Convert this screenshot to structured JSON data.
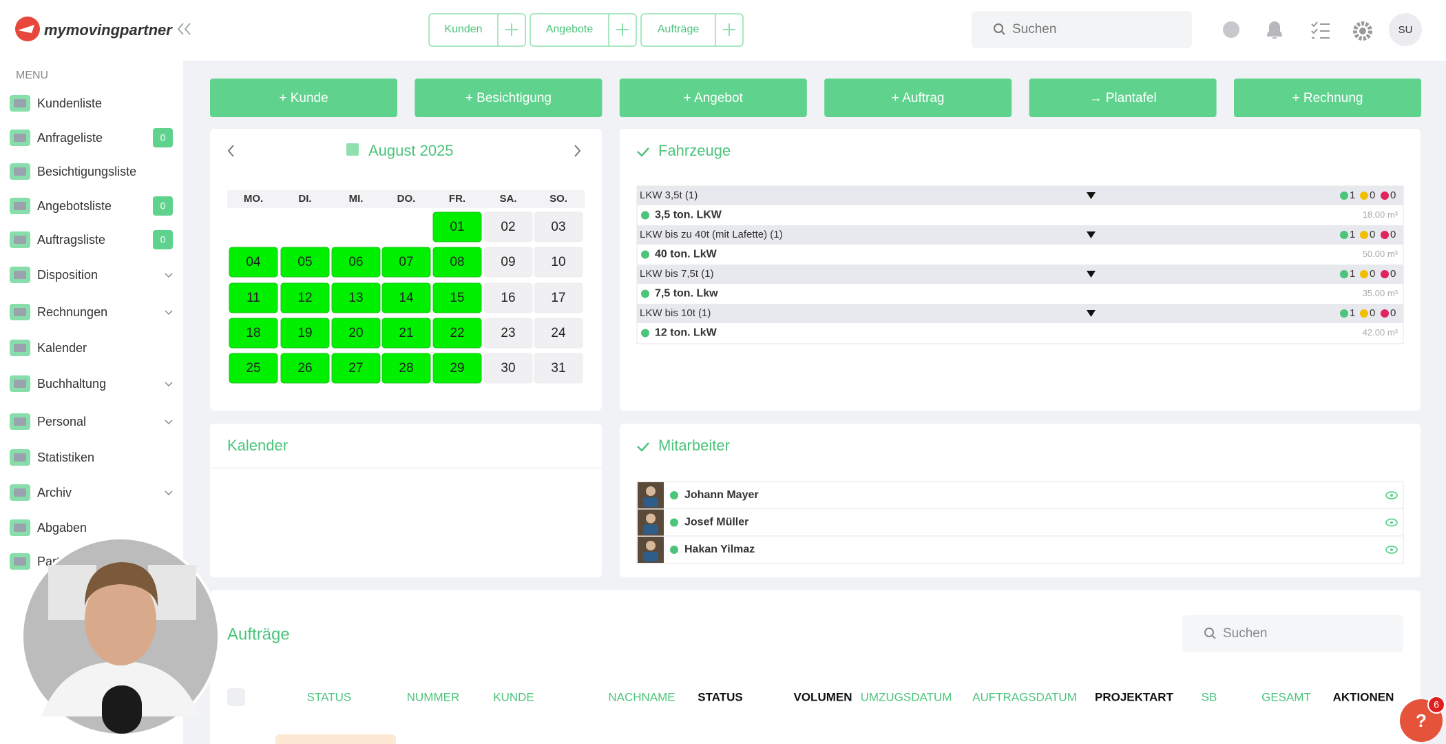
{
  "header": {
    "logo": "mymovingpartner",
    "tabs": [
      "Kunden",
      "Angebote",
      "Aufträge"
    ],
    "search": "Suchen",
    "avatar": "SU"
  },
  "sidebar": {
    "label": "MENU",
    "items": [
      {
        "label": "Kundenliste"
      },
      {
        "label": "Anfrageliste",
        "badge": 0
      },
      {
        "label": "Besichtigungsliste"
      },
      {
        "label": "Angebotsliste",
        "badge": 0
      },
      {
        "label": "Auftragsliste",
        "badge": 0
      },
      {
        "label": "Disposition",
        "expandable": true
      },
      {
        "label": "Rechnungen",
        "expandable": true
      },
      {
        "label": "Kalender"
      },
      {
        "label": "Buchhaltung",
        "expandable": true
      },
      {
        "label": "Personal",
        "expandable": true
      },
      {
        "label": "Statistiken"
      },
      {
        "label": "Archiv",
        "expandable": true
      },
      {
        "label": "Abgaben"
      },
      {
        "label": "Partner"
      }
    ]
  },
  "actions": [
    "+ Kunde",
    "+ Besichtigung",
    "+ Angebot",
    "+ Auftrag",
    "→ Plantafel",
    "+ Rechnung"
  ],
  "calendar": {
    "title": "August 2025",
    "weekdays": [
      "MO.",
      "DI.",
      "MI.",
      "DO.",
      "FR.",
      "SA.",
      "SO."
    ],
    "days": [
      null,
      null,
      null,
      null,
      {
        "label": "01",
        "highlight": true
      },
      {
        "label": "02",
        "highlight": false
      },
      {
        "label": "03",
        "highlight": false
      },
      {
        "label": "04",
        "highlight": true
      },
      {
        "label": "05",
        "highlight": true
      },
      {
        "label": "06",
        "highlight": true
      },
      {
        "label": "07",
        "highlight": true
      },
      {
        "label": "08",
        "highlight": true
      },
      {
        "label": "09",
        "highlight": false
      },
      {
        "label": "10",
        "highlight": false
      },
      {
        "label": "11",
        "highlight": true
      },
      {
        "label": "12",
        "highlight": true
      },
      {
        "label": "13",
        "highlight": true
      },
      {
        "label": "14",
        "highlight": true
      },
      {
        "label": "15",
        "highlight": true
      },
      {
        "label": "16",
        "highlight": false
      },
      {
        "label": "17",
        "highlight": false
      },
      {
        "label": "18",
        "highlight": true
      },
      {
        "label": "19",
        "highlight": true
      },
      {
        "label": "20",
        "highlight": true
      },
      {
        "label": "21",
        "highlight": true
      },
      {
        "label": "22",
        "highlight": true
      },
      {
        "label": "23",
        "highlight": false
      },
      {
        "label": "24",
        "highlight": false
      },
      {
        "label": "25",
        "highlight": true
      },
      {
        "label": "26",
        "highlight": true
      },
      {
        "label": "27",
        "highlight": true
      },
      {
        "label": "28",
        "highlight": true
      },
      {
        "label": "29",
        "highlight": true
      },
      {
        "label": "30",
        "highlight": false
      },
      {
        "label": "31",
        "highlight": false
      }
    ]
  },
  "vehicles": {
    "title": "Fahrzeuge",
    "groups": [
      {
        "name": "LKW 3,5t (1)",
        "green": 1,
        "yellow": 0,
        "red": 0,
        "vehicle": "3,5 ton. LKW",
        "volume": "18.00 m³"
      },
      {
        "name": "LKW bis zu 40t (mit Lafette) (1)",
        "green": 1,
        "yellow": 0,
        "red": 0,
        "vehicle": "40 ton. LkW",
        "volume": "50.00 m³"
      },
      {
        "name": "LKW bis 7,5t (1)",
        "green": 1,
        "yellow": 0,
        "red": 0,
        "vehicle": "7,5 ton. Lkw",
        "volume": "35.00 m³"
      },
      {
        "name": "LKW bis 10t (1)",
        "green": 1,
        "yellow": 0,
        "red": 0,
        "vehicle": "12 ton. LkW",
        "volume": "42.00 m³"
      }
    ]
  },
  "calendar_panel": {
    "title": "Kalender"
  },
  "staff": {
    "title": "Mitarbeiter",
    "members": [
      "Johann Mayer",
      "Josef Müller",
      "Hakan Yilmaz"
    ]
  },
  "orders": {
    "title": "Aufträge",
    "search": "Suchen",
    "columns": [
      {
        "label": "STATUS",
        "sortable": true
      },
      {
        "label": "NUMMER",
        "sortable": true
      },
      {
        "label": "KUNDE",
        "sortable": true
      },
      {
        "label": "NACHNAME",
        "sortable": true
      },
      {
        "label": "STATUS",
        "sortable": false
      },
      {
        "label": "VOLUMEN",
        "sortable": false
      },
      {
        "label": "UMZUGSDATUM",
        "sortable": true
      },
      {
        "label": "AUFTRAGSDATUM",
        "sortable": true
      },
      {
        "label": "PROJEKTART",
        "sortable": false
      },
      {
        "label": "SB",
        "sortable": true
      },
      {
        "label": "GESAMT",
        "sortable": true
      },
      {
        "label": "AKTIONEN",
        "sortable": false
      }
    ]
  },
  "help": {
    "badge": 6
  }
}
